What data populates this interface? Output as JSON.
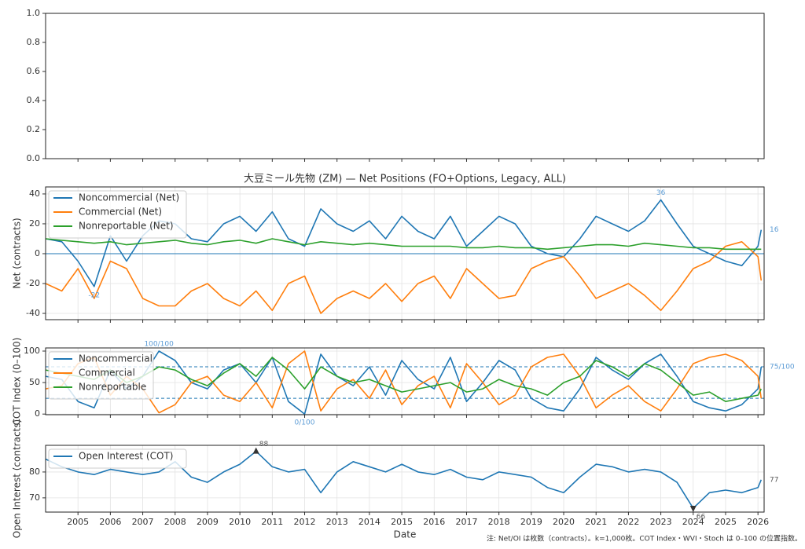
{
  "chart_data": [
    {
      "type": "line",
      "xlim": [
        2004.0,
        2026.19
      ],
      "xticks": [
        2005,
        2006,
        2007,
        2008,
        2009,
        2010,
        2011,
        2012,
        2013,
        2014,
        2015,
        2016,
        2017,
        2018,
        2019,
        2020,
        2021,
        2022,
        2023,
        2024,
        2025,
        2026
      ],
      "ylim": [
        0,
        1
      ],
      "yticks": [
        {
          "value": 0,
          "label": "0.0"
        },
        {
          "value": 0.2,
          "label": "0.2"
        },
        {
          "value": 0.4,
          "label": "0.4"
        },
        {
          "value": 0.6,
          "label": "0.6"
        },
        {
          "value": 0.8,
          "label": "0.8"
        },
        {
          "value": 1,
          "label": "1.0"
        }
      ],
      "grid": false,
      "series": []
    },
    {
      "type": "line",
      "title": "大豆ミール先物 (ZM) — Net Positions (FO+Options, Legacy, ALL)",
      "y_label": "Net (contracts)",
      "xlim": [
        2004.0,
        2026.19
      ],
      "xticks": [
        2005,
        2006,
        2007,
        2008,
        2009,
        2010,
        2011,
        2012,
        2013,
        2014,
        2015,
        2016,
        2017,
        2018,
        2019,
        2020,
        2021,
        2022,
        2023,
        2024,
        2025,
        2026
      ],
      "ylim": [
        -44.2,
        44.7
      ],
      "yticks": [
        -40,
        -20,
        0,
        20,
        40
      ],
      "grid": true,
      "legend": "upper left",
      "x": [
        2004,
        2004.5,
        2005,
        2005.5,
        2006,
        2006.5,
        2007,
        2007.5,
        2008,
        2008.5,
        2009,
        2009.5,
        2010,
        2010.5,
        2011,
        2011.5,
        2012,
        2012.5,
        2013,
        2013.5,
        2014,
        2014.5,
        2015,
        2015.5,
        2016,
        2016.5,
        2017,
        2017.5,
        2018,
        2018.5,
        2019,
        2019.5,
        2020,
        2020.5,
        2021,
        2021.5,
        2022,
        2022.5,
        2023,
        2023.5,
        2024,
        2024.5,
        2025,
        2025.5,
        2026,
        2026.1
      ],
      "hlines": [
        {
          "value": 0,
          "color": "#1f77b4",
          "style": "solid"
        }
      ],
      "series": [
        {
          "name": "Noncommercial (Net)",
          "color": "#1f77b4",
          "values": [
            10,
            8,
            -5,
            -22,
            12,
            -5,
            12,
            22,
            20,
            10,
            8,
            20,
            25,
            15,
            28,
            10,
            5,
            30,
            20,
            15,
            22,
            10,
            25,
            15,
            10,
            25,
            5,
            15,
            25,
            20,
            5,
            0,
            -2,
            10,
            25,
            20,
            15,
            22,
            36,
            20,
            5,
            0,
            -5,
            -8,
            5,
            16
          ]
        },
        {
          "name": "Commercial (Net)",
          "color": "#ff7f0e",
          "values": [
            -20,
            -25,
            -10,
            -30,
            -5,
            -10,
            -30,
            -35,
            -35,
            -25,
            -20,
            -30,
            -35,
            -25,
            -38,
            -20,
            -15,
            -40,
            -30,
            -25,
            -30,
            -20,
            -32,
            -20,
            -15,
            -30,
            -10,
            -20,
            -30,
            -28,
            -10,
            -5,
            -2,
            -15,
            -30,
            -25,
            -20,
            -28,
            -38,
            -25,
            -10,
            -5,
            5,
            8,
            -2,
            -18
          ]
        },
        {
          "name": "Nonreportable (Net)",
          "color": "#2ca02c",
          "values": [
            10,
            9,
            8,
            7,
            8,
            6,
            7,
            8,
            9,
            7,
            6,
            8,
            9,
            7,
            10,
            8,
            6,
            8,
            7,
            6,
            7,
            6,
            5,
            5,
            5,
            5,
            4,
            4,
            5,
            4,
            4,
            3,
            4,
            5,
            6,
            6,
            5,
            7,
            6,
            5,
            4,
            4,
            3,
            3,
            3,
            3
          ]
        }
      ],
      "annotations": [
        {
          "series": 0,
          "at": "max",
          "text": "36",
          "color": "#5b9bd5"
        },
        {
          "series": 0,
          "at": "min",
          "text": "-22",
          "color": "#5b9bd5"
        },
        {
          "series": 0,
          "at": "last",
          "text": "16",
          "color": "#5b9bd5"
        }
      ]
    },
    {
      "type": "line",
      "y_label": "COT Index (0–100)",
      "xlim": [
        2004.0,
        2026.19
      ],
      "xticks": [
        2005,
        2006,
        2007,
        2008,
        2009,
        2010,
        2011,
        2012,
        2013,
        2014,
        2015,
        2016,
        2017,
        2018,
        2019,
        2020,
        2021,
        2022,
        2023,
        2024,
        2025,
        2026
      ],
      "ylim": [
        -1,
        105
      ],
      "yticks": [
        0,
        50,
        100
      ],
      "grid": true,
      "legend": "upper left",
      "x": [
        2004,
        2004.5,
        2005,
        2005.5,
        2006,
        2006.5,
        2007,
        2007.5,
        2008,
        2008.5,
        2009,
        2009.5,
        2010,
        2010.5,
        2011,
        2011.5,
        2012,
        2012.5,
        2013,
        2013.5,
        2014,
        2014.5,
        2015,
        2015.5,
        2016,
        2016.5,
        2017,
        2017.5,
        2018,
        2018.5,
        2019,
        2019.5,
        2020,
        2020.5,
        2021,
        2021.5,
        2022,
        2022.5,
        2023,
        2023.5,
        2024,
        2024.5,
        2025,
        2025.5,
        2026,
        2026.1
      ],
      "hlines": [
        {
          "value": 75,
          "color": "#1f77b4",
          "style": "dashed"
        },
        {
          "value": 25,
          "color": "#1f77b4",
          "style": "dashed"
        }
      ],
      "series": [
        {
          "name": "Noncommercial",
          "color": "#1f77b4",
          "values": [
            60,
            55,
            20,
            10,
            70,
            40,
            60,
            100,
            85,
            50,
            40,
            70,
            80,
            50,
            90,
            20,
            0,
            95,
            60,
            45,
            75,
            30,
            85,
            55,
            40,
            90,
            20,
            50,
            85,
            70,
            25,
            10,
            5,
            40,
            90,
            70,
            55,
            80,
            95,
            60,
            20,
            10,
            5,
            15,
            40,
            75
          ]
        },
        {
          "name": "Commercial",
          "color": "#ff7f0e",
          "values": [
            40,
            45,
            80,
            90,
            30,
            60,
            40,
            2,
            15,
            50,
            60,
            30,
            20,
            50,
            10,
            80,
            100,
            5,
            40,
            55,
            25,
            70,
            15,
            45,
            60,
            10,
            80,
            50,
            15,
            30,
            75,
            90,
            95,
            60,
            10,
            30,
            45,
            20,
            5,
            40,
            80,
            90,
            95,
            85,
            60,
            25
          ]
        },
        {
          "name": "Nonreportable",
          "color": "#2ca02c",
          "values": [
            70,
            65,
            60,
            55,
            70,
            50,
            60,
            75,
            70,
            55,
            45,
            65,
            80,
            60,
            90,
            70,
            40,
            75,
            60,
            50,
            55,
            45,
            35,
            40,
            45,
            50,
            35,
            40,
            55,
            45,
            40,
            30,
            50,
            60,
            85,
            75,
            60,
            80,
            70,
            50,
            30,
            35,
            20,
            25,
            30,
            40
          ]
        }
      ],
      "annotations": [
        {
          "series": 0,
          "at": "max",
          "text": "100/100",
          "color": "#5b9bd5"
        },
        {
          "series": 0,
          "at": "min",
          "text": "0/100",
          "color": "#5b9bd5"
        },
        {
          "series": 0,
          "at": "last",
          "text": "75/100",
          "color": "#5b9bd5"
        }
      ]
    },
    {
      "type": "line",
      "y_label": "Open Interest (contracts)",
      "x_label": "Date",
      "xtick_labels": true,
      "xlim": [
        2004.0,
        2026.19
      ],
      "xticks": [
        2005,
        2006,
        2007,
        2008,
        2009,
        2010,
        2011,
        2012,
        2013,
        2014,
        2015,
        2016,
        2017,
        2018,
        2019,
        2020,
        2021,
        2022,
        2023,
        2024,
        2025,
        2026
      ],
      "ylim": [
        64.5,
        90.3
      ],
      "yticks": [
        70,
        80
      ],
      "grid": true,
      "legend": "upper left",
      "x": [
        2004,
        2004.5,
        2005,
        2005.5,
        2006,
        2006.5,
        2007,
        2007.5,
        2008,
        2008.5,
        2009,
        2009.5,
        2010,
        2010.5,
        2011,
        2011.5,
        2012,
        2012.5,
        2013,
        2013.5,
        2014,
        2014.5,
        2015,
        2015.5,
        2016,
        2016.5,
        2017,
        2017.5,
        2018,
        2018.5,
        2019,
        2019.5,
        2020,
        2020.5,
        2021,
        2021.5,
        2022,
        2022.5,
        2023,
        2023.5,
        2024,
        2024.5,
        2025,
        2025.5,
        2026,
        2026.1
      ],
      "series": [
        {
          "name": "Open Interest (COT)",
          "color": "#1f77b4",
          "values": [
            85,
            82,
            80,
            79,
            81,
            80,
            79,
            80,
            84,
            78,
            76,
            80,
            83,
            88,
            82,
            80,
            81,
            72,
            80,
            84,
            82,
            80,
            83,
            80,
            79,
            81,
            78,
            77,
            80,
            79,
            78,
            74,
            72,
            78,
            83,
            82,
            80,
            81,
            80,
            76,
            66,
            72,
            73,
            72,
            74,
            77
          ]
        }
      ],
      "annotations": [
        {
          "series": 0,
          "at": "max",
          "text": "88",
          "color": "#555555",
          "marker": "up"
        },
        {
          "series": 0,
          "at": "min",
          "text": "66",
          "color": "#555555",
          "marker": "down"
        },
        {
          "series": 0,
          "at": "last",
          "text": "77",
          "color": "#555555"
        }
      ]
    }
  ],
  "note": "注: Net/OI は枚数（contracts）。k=1,000枚。COT Index・WVI・Stoch は 0–100 の位置指数。"
}
